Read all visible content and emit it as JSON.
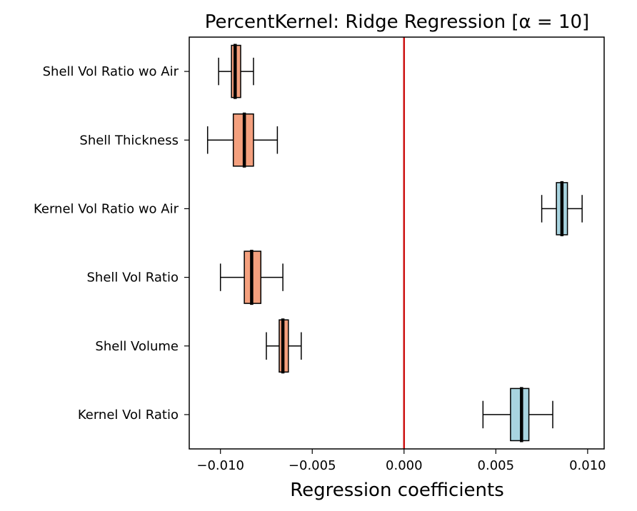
{
  "chart_data": {
    "type": "boxplot-horizontal",
    "title": "PercentKernel: Ridge Regression [α = 10]",
    "xlabel": "Regression coefficients",
    "ylabel": "",
    "xlim": [
      -0.0117,
      0.0109
    ],
    "xticks": [
      -0.01,
      -0.005,
      0.0,
      0.005,
      0.01
    ],
    "xtick_labels": [
      "−0.010",
      "−0.005",
      "0.000",
      "0.005",
      "0.010"
    ],
    "reference_line": {
      "x": 0.0,
      "color": "#cc1111"
    },
    "categories": [
      "Shell Vol Ratio wo Air",
      "Shell Thickness",
      "Kernel Vol Ratio wo Air",
      "Shell Vol Ratio",
      "Shell Volume",
      "Kernel Vol Ratio"
    ],
    "boxes": [
      {
        "label": "Shell Vol Ratio wo Air",
        "whisker_low": -0.0101,
        "q1": -0.0094,
        "median": -0.0092,
        "q3": -0.0089,
        "whisker_high": -0.0082,
        "color": "#f4a07e"
      },
      {
        "label": "Shell Thickness",
        "whisker_low": -0.0107,
        "q1": -0.0093,
        "median": -0.0087,
        "q3": -0.0082,
        "whisker_high": -0.0069,
        "color": "#f4a07e"
      },
      {
        "label": "Kernel Vol Ratio wo Air",
        "whisker_low": 0.0075,
        "q1": 0.0083,
        "median": 0.0086,
        "q3": 0.0089,
        "whisker_high": 0.0097,
        "color": "#a8d4e0"
      },
      {
        "label": "Shell Vol Ratio",
        "whisker_low": -0.01,
        "q1": -0.0087,
        "median": -0.0083,
        "q3": -0.0078,
        "whisker_high": -0.0066,
        "color": "#f4a07e"
      },
      {
        "label": "Shell Volume",
        "whisker_low": -0.0075,
        "q1": -0.0068,
        "median": -0.0066,
        "q3": -0.0063,
        "whisker_high": -0.0056,
        "color": "#f4a07e"
      },
      {
        "label": "Kernel Vol Ratio",
        "whisker_low": 0.0043,
        "q1": 0.0058,
        "median": 0.0064,
        "q3": 0.0068,
        "whisker_high": 0.0081,
        "color": "#a8d4e0"
      }
    ]
  }
}
